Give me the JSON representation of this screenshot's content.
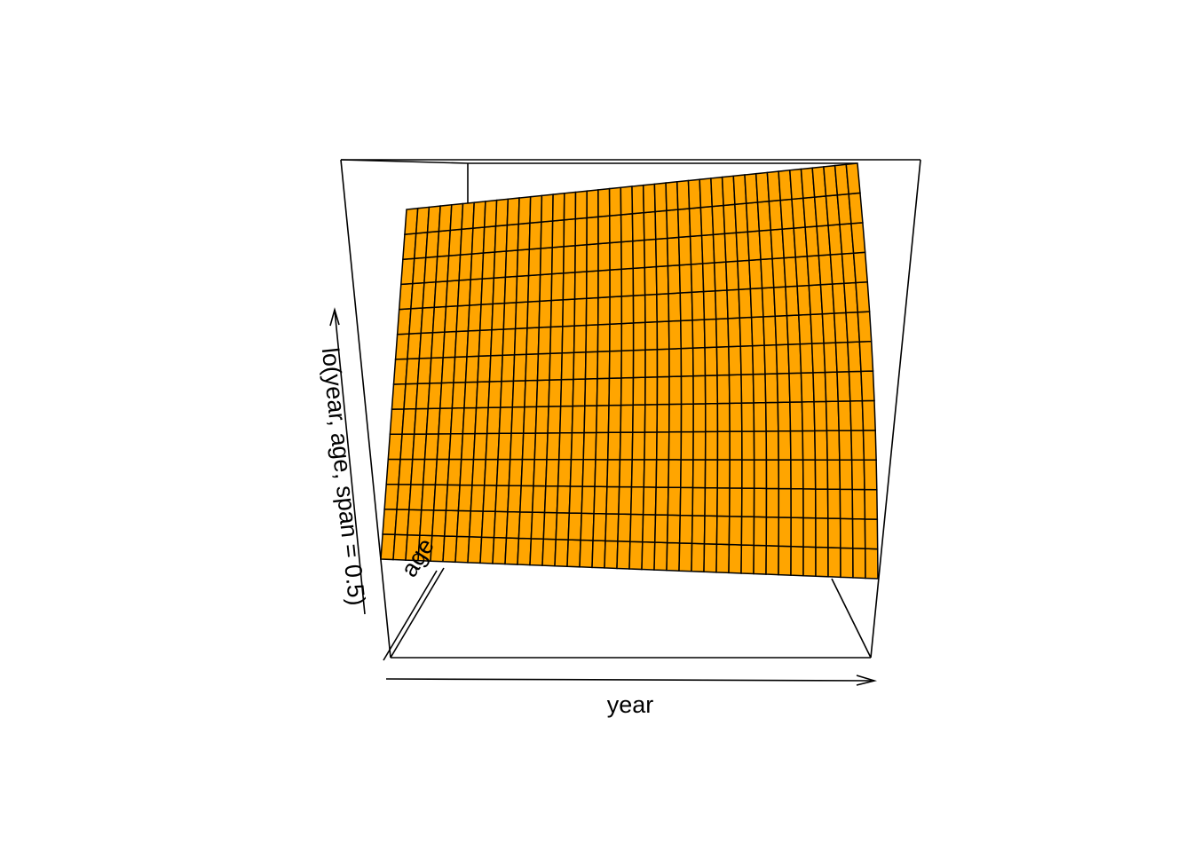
{
  "chart_data": {
    "type": "surface",
    "title": "",
    "xlabel": "year",
    "ylabel": "age",
    "zlabel": "lo(year, age, span = 0.5)",
    "grid_cols": 40,
    "grid_rows": 14,
    "z_corners": {
      "year_min_age_min": 0.0,
      "year_max_age_min": 0.0,
      "year_min_age_max": 0.62,
      "year_max_age_max": 0.95
    },
    "surface_color": "#FFA500",
    "line_color": "#000000"
  }
}
